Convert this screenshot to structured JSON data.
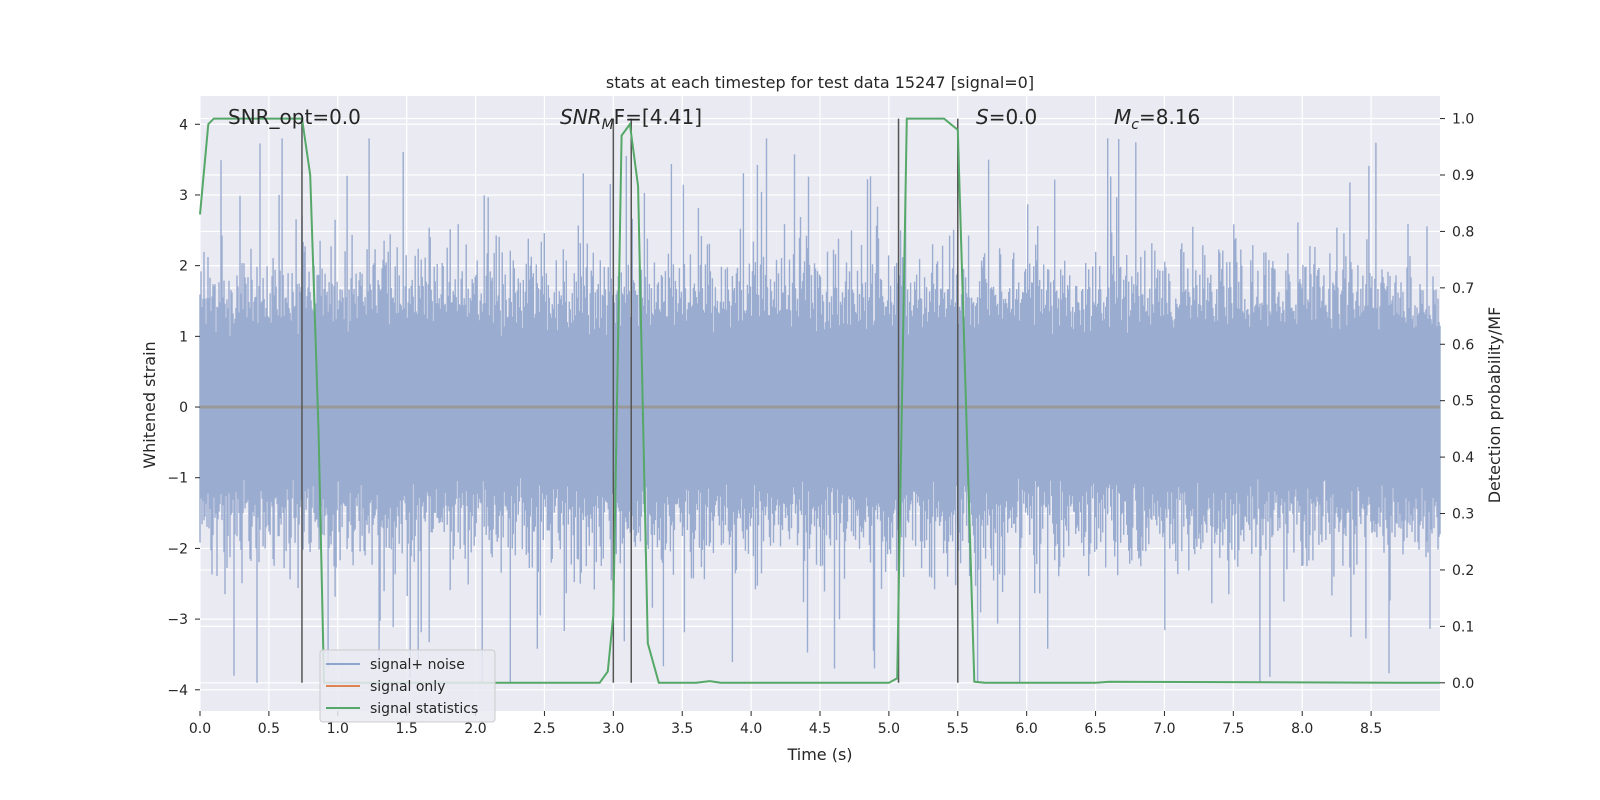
{
  "chart_data": {
    "type": "line",
    "title": "stats at each timestep for test data 15247 [signal=0]",
    "xlabel": "Time (s)",
    "ylabel": "Whitened strain",
    "ylabel_right": "Detection probability/MF",
    "xlim": [
      0.0,
      9.0
    ],
    "ylim": [
      -4.3,
      4.4
    ],
    "ylim_right": [
      -0.05,
      1.04
    ],
    "x_ticks": [
      "0.0",
      "0.5",
      "1.0",
      "1.5",
      "2.0",
      "2.5",
      "3.0",
      "3.5",
      "4.0",
      "4.5",
      "5.0",
      "5.5",
      "6.0",
      "6.5",
      "7.0",
      "7.5",
      "8.0",
      "8.5"
    ],
    "y_ticks": [
      "4",
      "3",
      "2",
      "1",
      "0",
      "−1",
      "−2",
      "−3",
      "−4"
    ],
    "y_ticks_right": [
      "1.0",
      "0.9",
      "0.8",
      "0.7",
      "0.6",
      "0.5",
      "0.4",
      "0.3",
      "0.2",
      "0.1",
      "0.0"
    ],
    "grid": true,
    "legend_position": "lower-left",
    "annotations": [
      {
        "main": "SNR_opt=0.0"
      },
      {
        "main": "SNR",
        "sub": "M",
        "rest": "F=[4.41]"
      },
      {
        "main": "S",
        "rest": "=0.0"
      },
      {
        "main": "M",
        "sub": "c",
        "rest": "=8.16"
      }
    ],
    "series": [
      {
        "name": "signal+ noise",
        "axis": "left",
        "color": "#8fa4cc",
        "x_range": [
          0.0,
          9.0
        ],
        "amplitude_envelope": [
          -3.9,
          3.8
        ],
        "note_values": "dense noise trace"
      },
      {
        "name": "signal only",
        "axis": "left",
        "color": "#dd8452",
        "x": [
          0.0,
          9.0
        ],
        "values": [
          0.0,
          0.0
        ]
      },
      {
        "name": "signal statistics",
        "axis": "right",
        "color": "#55a868",
        "x": [
          0.0,
          0.06,
          0.1,
          0.6,
          0.74,
          0.8,
          0.86,
          0.9,
          1.0,
          2.9,
          2.96,
          3.0,
          3.06,
          3.12,
          3.18,
          3.25,
          3.33,
          3.6,
          3.7,
          3.78,
          5.0,
          5.06,
          5.13,
          5.4,
          5.5,
          5.62,
          5.7,
          6.5,
          6.6,
          8.9,
          9.0
        ],
        "values": [
          0.83,
          0.99,
          1.0,
          1.0,
          1.0,
          0.9,
          0.45,
          0.0,
          0.0,
          0.0,
          0.02,
          0.12,
          0.97,
          0.99,
          0.88,
          0.07,
          0.0,
          0.0,
          0.003,
          0.0,
          0.0,
          0.008,
          1.0,
          1.0,
          0.98,
          0.002,
          0.0,
          0.0,
          0.002,
          0.0,
          0.0
        ]
      }
    ],
    "vertical_lines_x": [
      0.74,
      3.0,
      3.13,
      5.07,
      5.5
    ]
  },
  "colors": {
    "plot_bg": "#eaeaf2",
    "grid": "#ffffff",
    "vline": "#555555",
    "noise_fill": "#9aaccf"
  }
}
